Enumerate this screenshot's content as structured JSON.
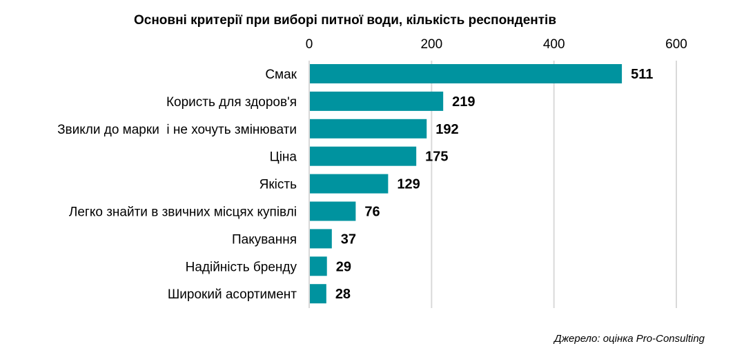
{
  "chart_data": {
    "type": "bar",
    "orientation": "horizontal",
    "title": "Основні критерії при виборі питної води, кількість респондентів",
    "categories": [
      "Смак",
      "Користь для здоров'я",
      "Звикли до марки  і не хочуть змінювати",
      "Ціна",
      "Якість",
      "Легко знайти в звичних місцях купівлі",
      "Пакування",
      "Надійність бренду",
      "Широкий асортимент"
    ],
    "values": [
      511,
      219,
      192,
      175,
      129,
      76,
      37,
      29,
      28
    ],
    "xlim": [
      0,
      600
    ],
    "xticks": [
      0,
      200,
      400,
      600
    ],
    "x_axis_position": "top",
    "grid": true,
    "data_labels": true,
    "bar_color": "#00939f",
    "source": "Джерело: оцінка Pro-Consulting"
  }
}
